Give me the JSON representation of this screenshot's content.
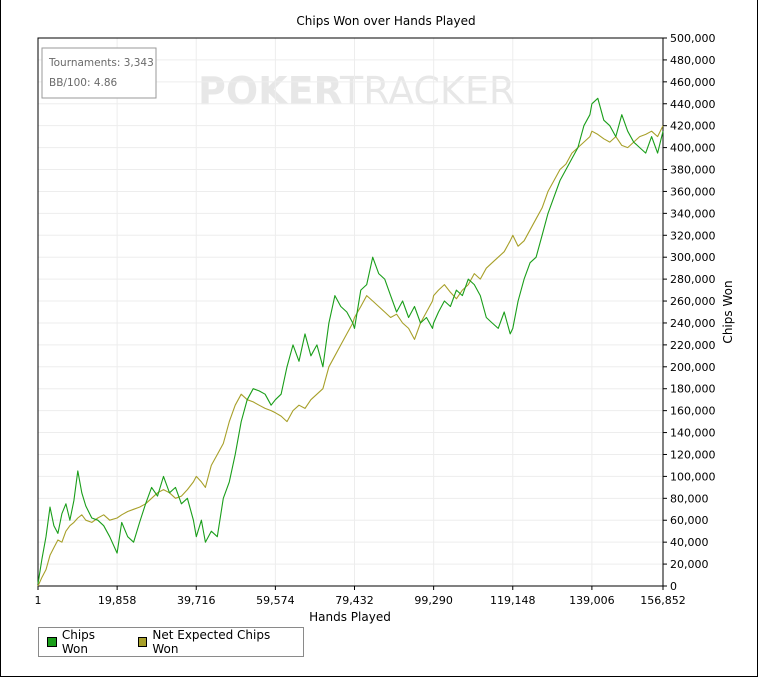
{
  "chart_data": {
    "type": "line",
    "title": "Chips Won over Hands Played",
    "xlabel": "Hands Played",
    "ylabel": "Chips Won",
    "xlim": [
      1,
      156852
    ],
    "ylim": [
      0,
      500000
    ],
    "x_ticks": [
      1,
      19858,
      39716,
      59574,
      79432,
      99290,
      119148,
      139006,
      156852
    ],
    "x_tick_labels": [
      "1",
      "19,858",
      "39,716",
      "59,574",
      "79,432",
      "99,290",
      "119,148",
      "139,006",
      "156,852"
    ],
    "y_ticks": [
      0,
      20000,
      40000,
      60000,
      80000,
      100000,
      120000,
      140000,
      160000,
      180000,
      200000,
      220000,
      240000,
      260000,
      280000,
      300000,
      320000,
      340000,
      360000,
      380000,
      400000,
      420000,
      440000,
      460000,
      480000,
      500000
    ],
    "y_tick_labels": [
      "0",
      "20,000",
      "40,000",
      "60,000",
      "80,000",
      "100,000",
      "120,000",
      "140,000",
      "160,000",
      "180,000",
      "200,000",
      "220,000",
      "240,000",
      "260,000",
      "280,000",
      "300,000",
      "320,000",
      "340,000",
      "360,000",
      "380,000",
      "400,000",
      "420,000",
      "440,000",
      "460,000",
      "480,000",
      "500,000"
    ],
    "grid": true,
    "legend_position": "bottom-left",
    "stats": {
      "tournaments": "Tournaments: 3,343",
      "bb100": "BB/100: 4.86"
    },
    "watermark": {
      "part1": "POKER",
      "part2": "TRACKER"
    },
    "series": [
      {
        "name": "Chips Won",
        "color": "#1a9e1a",
        "x": [
          1,
          1000,
          2000,
          3000,
          4000,
          5000,
          6000,
          7000,
          8000,
          9000,
          10000,
          11000,
          12000,
          13500,
          15000,
          16500,
          18000,
          19858,
          21000,
          22500,
          24000,
          25500,
          27000,
          28500,
          30000,
          31500,
          33000,
          34500,
          36000,
          37500,
          39000,
          39716,
          41000,
          42000,
          43500,
          45000,
          46500,
          48000,
          49500,
          51000,
          52500,
          54000,
          55500,
          57000,
          58500,
          59574,
          61000,
          62500,
          64000,
          65500,
          67000,
          68500,
          70000,
          71500,
          73000,
          74500,
          76000,
          77500,
          79000,
          79432,
          81000,
          82500,
          84000,
          85500,
          87000,
          88500,
          90000,
          91500,
          93000,
          94500,
          96000,
          97500,
          99000,
          99290,
          100500,
          102000,
          103500,
          105000,
          106500,
          108000,
          109500,
          111000,
          112500,
          114000,
          115500,
          117000,
          118500,
          119148,
          120500,
          122000,
          123500,
          125000,
          126500,
          128000,
          129500,
          131000,
          132500,
          134000,
          135500,
          137000,
          138500,
          139006,
          140500,
          142000,
          143500,
          145000,
          146500,
          148000,
          149500,
          151000,
          152500,
          154000,
          155500,
          156852
        ],
        "values": [
          2000,
          25000,
          45000,
          72000,
          55000,
          48000,
          66000,
          75000,
          60000,
          78000,
          105000,
          85000,
          73000,
          62000,
          60000,
          55000,
          45000,
          30000,
          58000,
          45000,
          40000,
          58000,
          75000,
          90000,
          82000,
          100000,
          85000,
          90000,
          75000,
          80000,
          60000,
          45000,
          60000,
          40000,
          50000,
          45000,
          80000,
          95000,
          120000,
          150000,
          170000,
          180000,
          178000,
          175000,
          165000,
          170000,
          175000,
          200000,
          220000,
          205000,
          230000,
          210000,
          220000,
          200000,
          240000,
          265000,
          255000,
          250000,
          240000,
          235000,
          270000,
          275000,
          300000,
          285000,
          280000,
          265000,
          250000,
          260000,
          245000,
          255000,
          240000,
          245000,
          235000,
          240000,
          250000,
          260000,
          255000,
          270000,
          265000,
          280000,
          275000,
          265000,
          245000,
          240000,
          235000,
          250000,
          230000,
          235000,
          260000,
          280000,
          295000,
          300000,
          320000,
          340000,
          355000,
          370000,
          380000,
          390000,
          400000,
          420000,
          430000,
          440000,
          445000,
          425000,
          420000,
          410000,
          430000,
          415000,
          405000,
          400000,
          395000,
          410000,
          395000,
          415000
        ]
      },
      {
        "name": "Net Expected Chips Won",
        "color": "#a8a02a",
        "x": [
          1,
          1000,
          2000,
          3000,
          4000,
          5000,
          6000,
          7000,
          8000,
          9000,
          10000,
          11000,
          12000,
          13500,
          15000,
          16500,
          18000,
          19858,
          21000,
          22500,
          24000,
          25500,
          27000,
          28500,
          30000,
          31500,
          33000,
          34500,
          36000,
          37500,
          39000,
          39716,
          41000,
          42000,
          43500,
          45000,
          46500,
          48000,
          49500,
          51000,
          52500,
          54000,
          55500,
          57000,
          58500,
          59574,
          61000,
          62500,
          64000,
          65500,
          67000,
          68500,
          70000,
          71500,
          73000,
          74500,
          76000,
          77500,
          79000,
          79432,
          81000,
          82500,
          84000,
          85500,
          87000,
          88500,
          90000,
          91500,
          93000,
          94500,
          96000,
          97500,
          99000,
          99290,
          100500,
          102000,
          103500,
          105000,
          106500,
          108000,
          109500,
          111000,
          112500,
          114000,
          115500,
          117000,
          118500,
          119148,
          120500,
          122000,
          123500,
          125000,
          126500,
          128000,
          129500,
          131000,
          132500,
          134000,
          135500,
          137000,
          138500,
          139006,
          140500,
          142000,
          143500,
          145000,
          146500,
          148000,
          149500,
          151000,
          152500,
          154000,
          155500,
          156852
        ],
        "values": [
          0,
          8000,
          15000,
          28000,
          35000,
          42000,
          40000,
          50000,
          55000,
          58000,
          62000,
          65000,
          60000,
          58000,
          62000,
          65000,
          60000,
          62000,
          65000,
          68000,
          70000,
          72000,
          75000,
          80000,
          85000,
          88000,
          85000,
          80000,
          82000,
          88000,
          95000,
          100000,
          95000,
          90000,
          110000,
          120000,
          130000,
          150000,
          165000,
          175000,
          170000,
          168000,
          165000,
          162000,
          160000,
          158000,
          155000,
          150000,
          160000,
          165000,
          162000,
          170000,
          175000,
          180000,
          200000,
          210000,
          220000,
          230000,
          240000,
          245000,
          255000,
          265000,
          260000,
          255000,
          250000,
          245000,
          248000,
          240000,
          235000,
          225000,
          240000,
          250000,
          260000,
          265000,
          270000,
          275000,
          268000,
          262000,
          270000,
          275000,
          285000,
          280000,
          290000,
          295000,
          300000,
          305000,
          315000,
          320000,
          310000,
          315000,
          325000,
          335000,
          345000,
          360000,
          370000,
          380000,
          385000,
          395000,
          400000,
          405000,
          410000,
          415000,
          412000,
          408000,
          405000,
          410000,
          402000,
          400000,
          405000,
          410000,
          412000,
          415000,
          410000,
          420000
        ]
      }
    ]
  }
}
